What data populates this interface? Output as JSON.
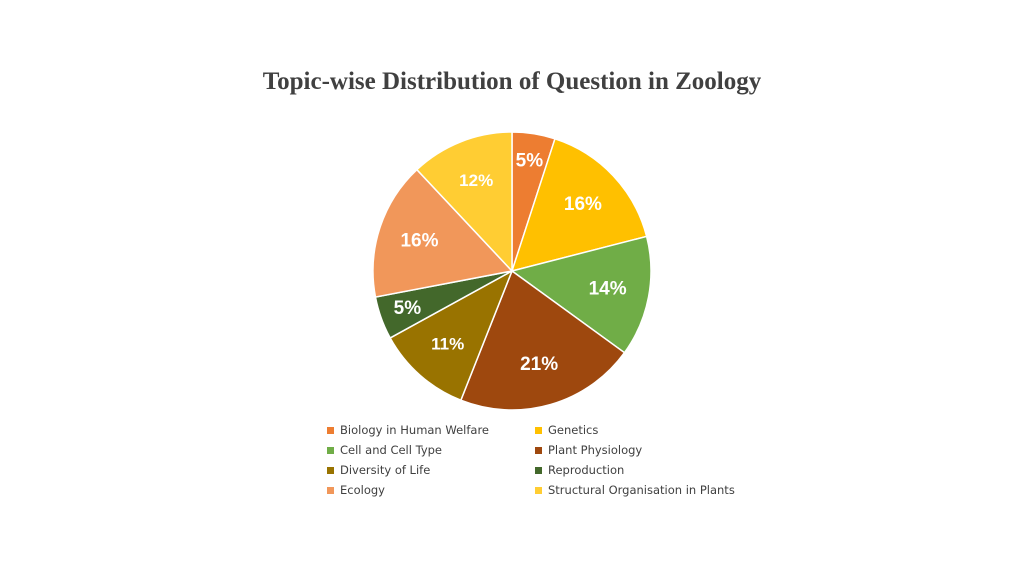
{
  "chart_data": {
    "type": "pie",
    "title": "Topic-wise Distribution of Question in Zoology",
    "start_angle_deg": 0,
    "direction": "clockwise",
    "legend_position": "bottom",
    "slices": [
      {
        "name": "Biology in Human Welfare",
        "value": 5,
        "label": "5%",
        "color": "#ED7D31"
      },
      {
        "name": "Genetics",
        "value": 16,
        "label": "16%",
        "color": "#FFC000"
      },
      {
        "name": "Cell and Cell Type",
        "value": 14,
        "label": "14%",
        "color": "#70AD47"
      },
      {
        "name": "Plant Physiology",
        "value": 21,
        "label": "21%",
        "color": "#9E480E"
      },
      {
        "name": "Diversity of Life",
        "value": 11,
        "label": "11%",
        "color": "#997300"
      },
      {
        "name": "Reproduction",
        "value": 5,
        "label": "5%",
        "color": "#43682B"
      },
      {
        "name": "Ecology",
        "value": 16,
        "label": "16%",
        "color": "#F1975A"
      },
      {
        "name": "Structural Organisation in Plants",
        "value": 12,
        "label": "12%",
        "color": "#FFCD33"
      }
    ]
  }
}
